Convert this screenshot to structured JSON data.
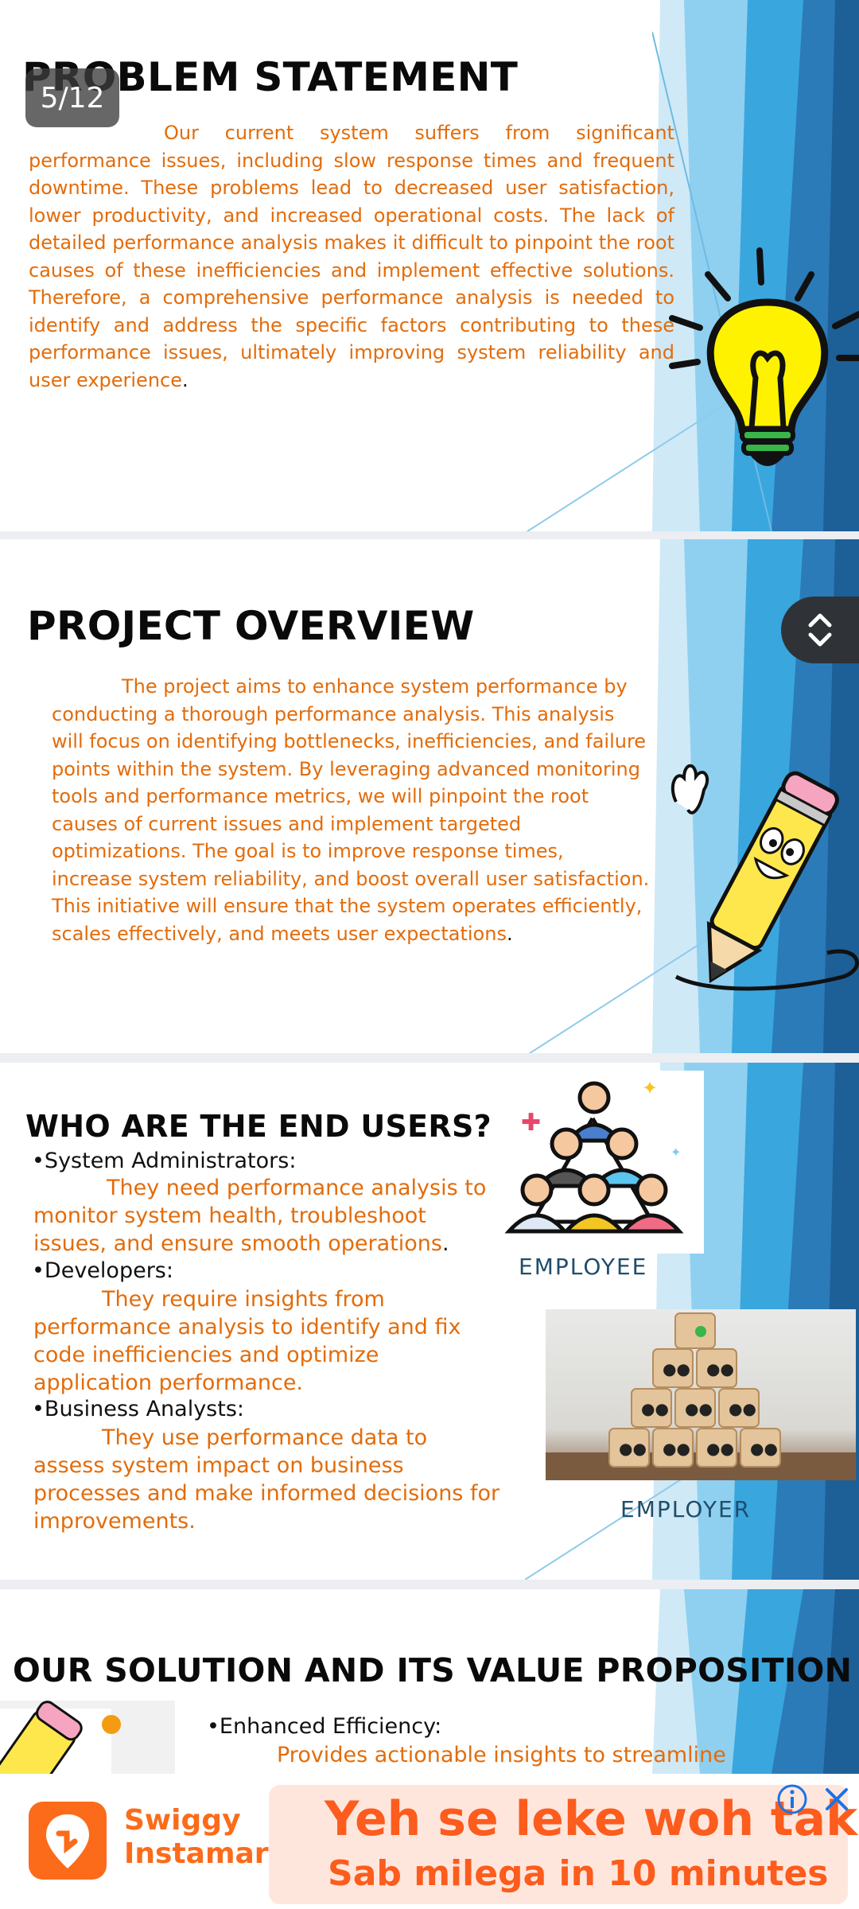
{
  "page_indicator": "5/12",
  "slides": {
    "problem": {
      "title": "PROBLEM STATEMENT",
      "body": "Our current system suffers from significant performance issues, including slow response times and frequent downtime. These problems lead to decreased user satisfaction, lower productivity, and increased operational costs. The lack of detailed performance analysis makes it difficult to pinpoint the root causes of these inefficiencies and implement effective solutions. Therefore, a comprehensive performance analysis is needed to identify and address the specific factors contributing to these performance issues, ultimately improving system reliability and user experience",
      "end": "."
    },
    "overview": {
      "title": "PROJECT OVERVIEW",
      "body": "The project aims to enhance system performance by conducting a thorough performance analysis. This analysis will focus on identifying bottlenecks, inefficiencies, and failure points within the system. By leveraging advanced monitoring tools and performance metrics, we will pinpoint the root causes of current issues and implement targeted optimizations. The goal is to improve response times, increase system reliability, and boost overall user satisfaction. This initiative will ensure that the system operates efficiently, scales effectively, and meets user expectations",
      "end": "."
    },
    "users": {
      "title": "WHO ARE THE END USERS?",
      "groups": [
        {
          "label": "•System Administrators:",
          "text": "They need performance analysis to monitor system health, troubleshoot issues, and ensure smooth operations",
          "end": "."
        },
        {
          "label": "•Developers:",
          "text": "They require insights from performance analysis to identify and fix code inefficiencies and optimize application performance.",
          "end": ""
        },
        {
          "label": "•Business Analysts:",
          "text": "They use performance data to assess system impact on business processes and make informed decisions for improvements.",
          "end": ""
        }
      ],
      "caption_employee": "EMPLOYEE",
      "caption_employer": "EMPLOYER"
    },
    "solution": {
      "title": "OUR SOLUTION AND ITS VALUE PROPOSITION",
      "bullet": "•Enhanced Efficiency:",
      "text": "Provides actionable insights to streamline"
    }
  },
  "ad": {
    "brand_line1": "Swiggy",
    "brand_line2": "Instamart",
    "headline": "Yeh se leke woh tak",
    "subline": "Sab milega in 10 minutes"
  },
  "colors": {
    "accent_orange": "#e36c0a",
    "deco_blue": "#3aa6de",
    "ad_orange": "#fc6b1a"
  }
}
